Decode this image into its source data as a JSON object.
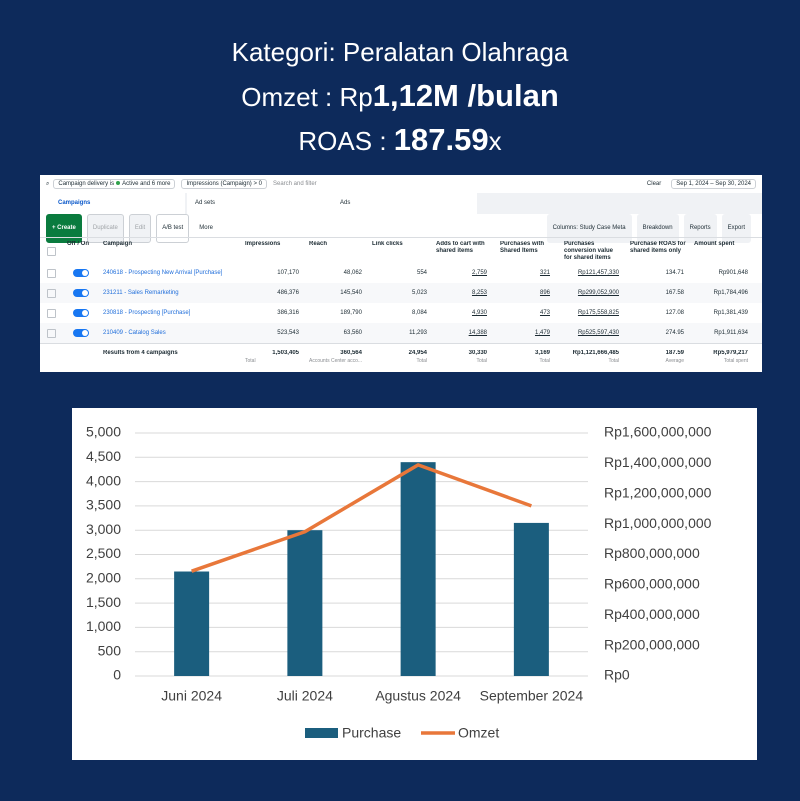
{
  "header": {
    "line1": "Kategori: Peralatan Olahraga",
    "omzet_label": "Omzet : Rp",
    "omzet_value": "1,12M /bulan",
    "roas_label": "ROAS : ",
    "roas_value": "187.59",
    "roas_suffix": "x"
  },
  "screenshot": {
    "filters": [
      "Campaign delivery is",
      "Active",
      "and 6 more",
      "Impressions (Campaign) > 0"
    ],
    "search_placeholder": "Search and filter",
    "clear": "Clear",
    "date_range": "Sep 1, 2024 – Sep 30, 2024",
    "tabs": [
      "Campaigns",
      "Ad sets",
      "Ads"
    ],
    "actions": [
      "+ Create",
      "Duplicate",
      "Edit",
      "A/B test",
      "More"
    ],
    "toolbar_right": [
      "Columns: Study Case Meta",
      "Breakdown",
      "Reports",
      "Export"
    ],
    "columns": [
      "Off / On",
      "Campaign",
      "Impressions",
      "Reach",
      "Link clicks",
      "Adds to cart with shared items",
      "Purchases with Shared Items",
      "Purchases conversion value for shared items",
      "Purchase ROAS for shared items only",
      "Amount spent"
    ],
    "rows": [
      [
        "240618 - Prospecting New Arrival [Purchase]",
        "107,170",
        "48,062",
        "554",
        "2,759",
        "321",
        "Rp121,457,330",
        "134.71",
        "Rp901,648"
      ],
      [
        "231211 - Sales Remarketing",
        "486,376",
        "145,540",
        "5,023",
        "8,253",
        "896",
        "Rp299,052,900",
        "167.58",
        "Rp1,784,496"
      ],
      [
        "230818 - Prospecting [Purchase]",
        "386,316",
        "189,790",
        "8,084",
        "4,930",
        "473",
        "Rp175,558,825",
        "127.08",
        "Rp1,381,439"
      ],
      [
        "210409 - Catalog Sales",
        "523,543",
        "63,560",
        "11,293",
        "14,388",
        "1,479",
        "Rp525,597,430",
        "274.95",
        "Rp1,911,634"
      ]
    ],
    "totals": [
      "Results from 4 campaigns",
      "1,503,405",
      "360,564",
      "24,954",
      "30,330",
      "3,169",
      "Rp1,121,666,485",
      "187.59",
      "Rp5,979,217"
    ],
    "totals_notes": [
      null,
      "Total",
      "Accounts Center acco...",
      "Total",
      "Total",
      "Total",
      "Total",
      "Average",
      "Total spent"
    ]
  },
  "chart_data": {
    "type": "combo",
    "categories": [
      "Juni 2024",
      "Juli 2024",
      "Agustus 2024",
      "September 2024"
    ],
    "series": [
      {
        "name": "Purchase",
        "type": "bar",
        "color": "#1b5e7e",
        "values": [
          2150,
          3000,
          4400,
          3150
        ]
      },
      {
        "name": "Omzet",
        "type": "line",
        "axis": "y2",
        "color": "#e8773a",
        "values": [
          690000000,
          950000000,
          1390000000,
          1120000000
        ]
      }
    ],
    "ylim": [
      0,
      5000
    ],
    "yticks": [
      0,
      500,
      {
        "value": 1000,
        "label": "1,000"
      },
      {
        "value": 1500,
        "label": "1,500"
      },
      {
        "value": 2000,
        "label": "2,000"
      },
      {
        "value": 2500,
        "label": "2,500"
      },
      {
        "value": 3000,
        "label": "3,000"
      },
      {
        "value": 3500,
        "label": "3,500"
      },
      {
        "value": 4000,
        "label": "4,000"
      },
      {
        "value": 4500,
        "label": "4,500"
      },
      {
        "value": 5000,
        "label": "5,000"
      }
    ],
    "y2lim": [
      0,
      1600000000
    ],
    "y2ticks": [
      {
        "value": 0,
        "label": "Rp0"
      },
      {
        "value": 200000000,
        "label": "Rp200,000,000"
      },
      {
        "value": 400000000,
        "label": "Rp400,000,000"
      },
      {
        "value": 600000000,
        "label": "Rp600,000,000"
      },
      {
        "value": 800000000,
        "label": "Rp800,000,000"
      },
      {
        "value": 1000000000,
        "label": "Rp1,000,000,000"
      },
      {
        "value": 1200000000,
        "label": "Rp1,200,000,000"
      },
      {
        "value": 1400000000,
        "label": "Rp1,400,000,000"
      },
      {
        "value": 1600000000,
        "label": "Rp1,600,000,000"
      }
    ],
    "grid": true,
    "legend": "bottom"
  }
}
